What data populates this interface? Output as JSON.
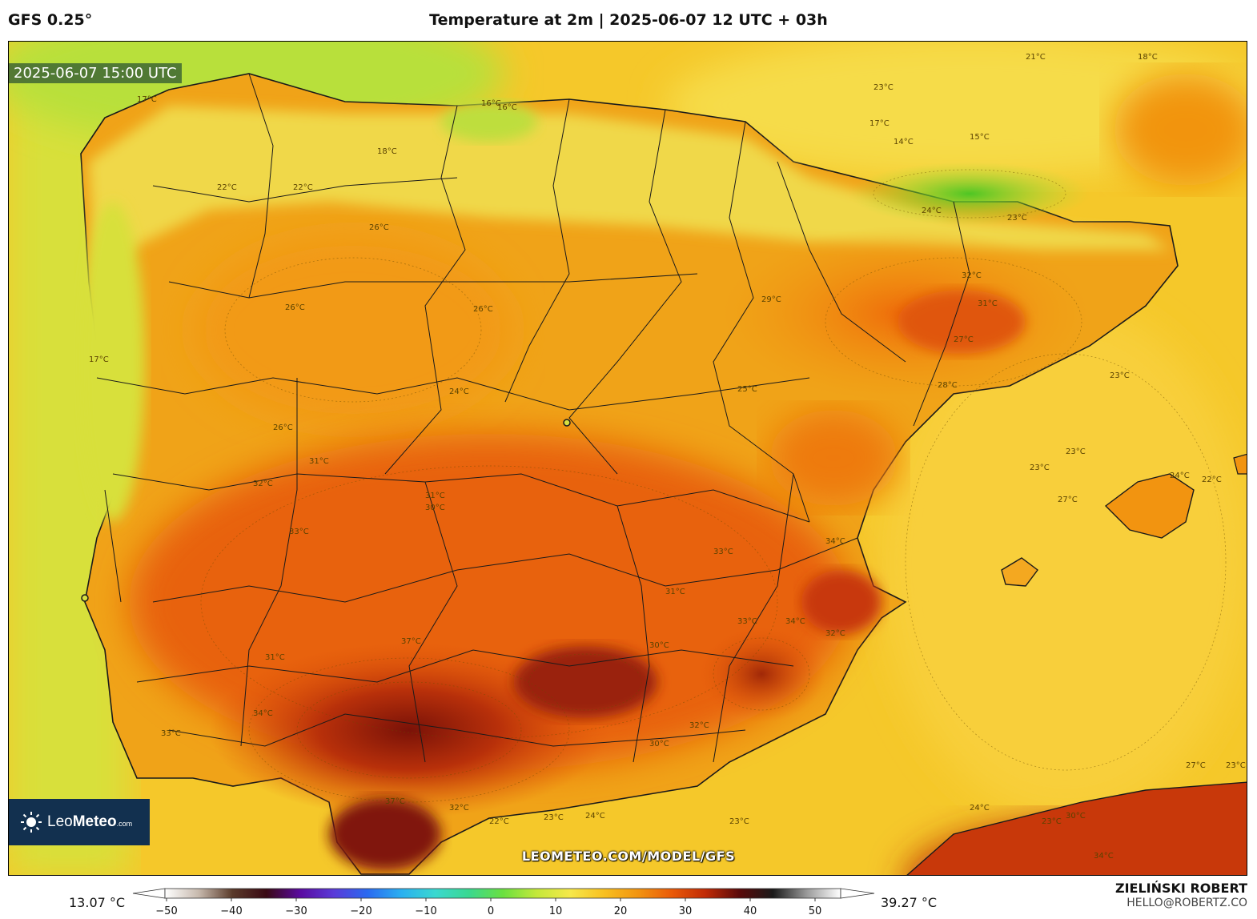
{
  "header": {
    "model": "GFS 0.25°",
    "title": "Temperature at 2m | 2025-06-07 12 UTC + 03h"
  },
  "map": {
    "valid_time": "2025-06-07 15:00 UTC",
    "watermark_url": "LEOMETEO.COM/MODEL/GFS",
    "logo": {
      "brand_light": "Leo",
      "brand_bold": "Meteo",
      "suffix": ".com"
    },
    "isotherm_labels": [
      "17°C",
      "16°C",
      "22°C",
      "22°C",
      "18°C",
      "23°C",
      "21°C",
      "18°C",
      "17°C",
      "14°C",
      "15°C",
      "16°C",
      "24°C",
      "23°C",
      "26°C",
      "26°C",
      "29°C",
      "32°C",
      "31°C",
      "26°C",
      "26°C",
      "24°C",
      "25°C",
      "28°C",
      "27°C",
      "23°C",
      "31°C",
      "32°C",
      "30°C",
      "31°C",
      "33°C",
      "34°C",
      "33°C",
      "31°C",
      "33°C",
      "34°C",
      "32°C",
      "31°C",
      "30°C",
      "37°C",
      "34°C",
      "33°C",
      "32°C",
      "30°C",
      "37°C",
      "32°C",
      "22°C",
      "23°C",
      "24°C",
      "23°C",
      "24°C",
      "27°C",
      "23°C",
      "23°C",
      "23°C",
      "24°C",
      "22°C",
      "27°C",
      "30°C",
      "34°C",
      "23°C",
      "17°C"
    ],
    "legend": {
      "min": "13.07 °C",
      "max": "39.27 °C"
    },
    "colorscale": {
      "stops": [
        "#ffffff",
        "#c7b9ad",
        "#5a3a2a",
        "#3a0a14",
        "#5a0aa0",
        "#5a3ad8",
        "#2a6af0",
        "#2ab0f0",
        "#3ad8d0",
        "#3ad890",
        "#6ae040",
        "#c4e83a",
        "#f6e84a",
        "#f8c020",
        "#f29410",
        "#ea5a08",
        "#c02a06",
        "#5a0a0a",
        "#1a1a1a",
        "#9a9a9a",
        "#ffffff"
      ],
      "ticks": [
        "−50",
        "−40",
        "−30",
        "−20",
        "−10",
        "0",
        "10",
        "20",
        "30",
        "40",
        "50"
      ]
    }
  },
  "footer": {
    "author": "ZIELIŃSKI ROBERT",
    "email": "HELLO@ROBERTZ.CO"
  }
}
